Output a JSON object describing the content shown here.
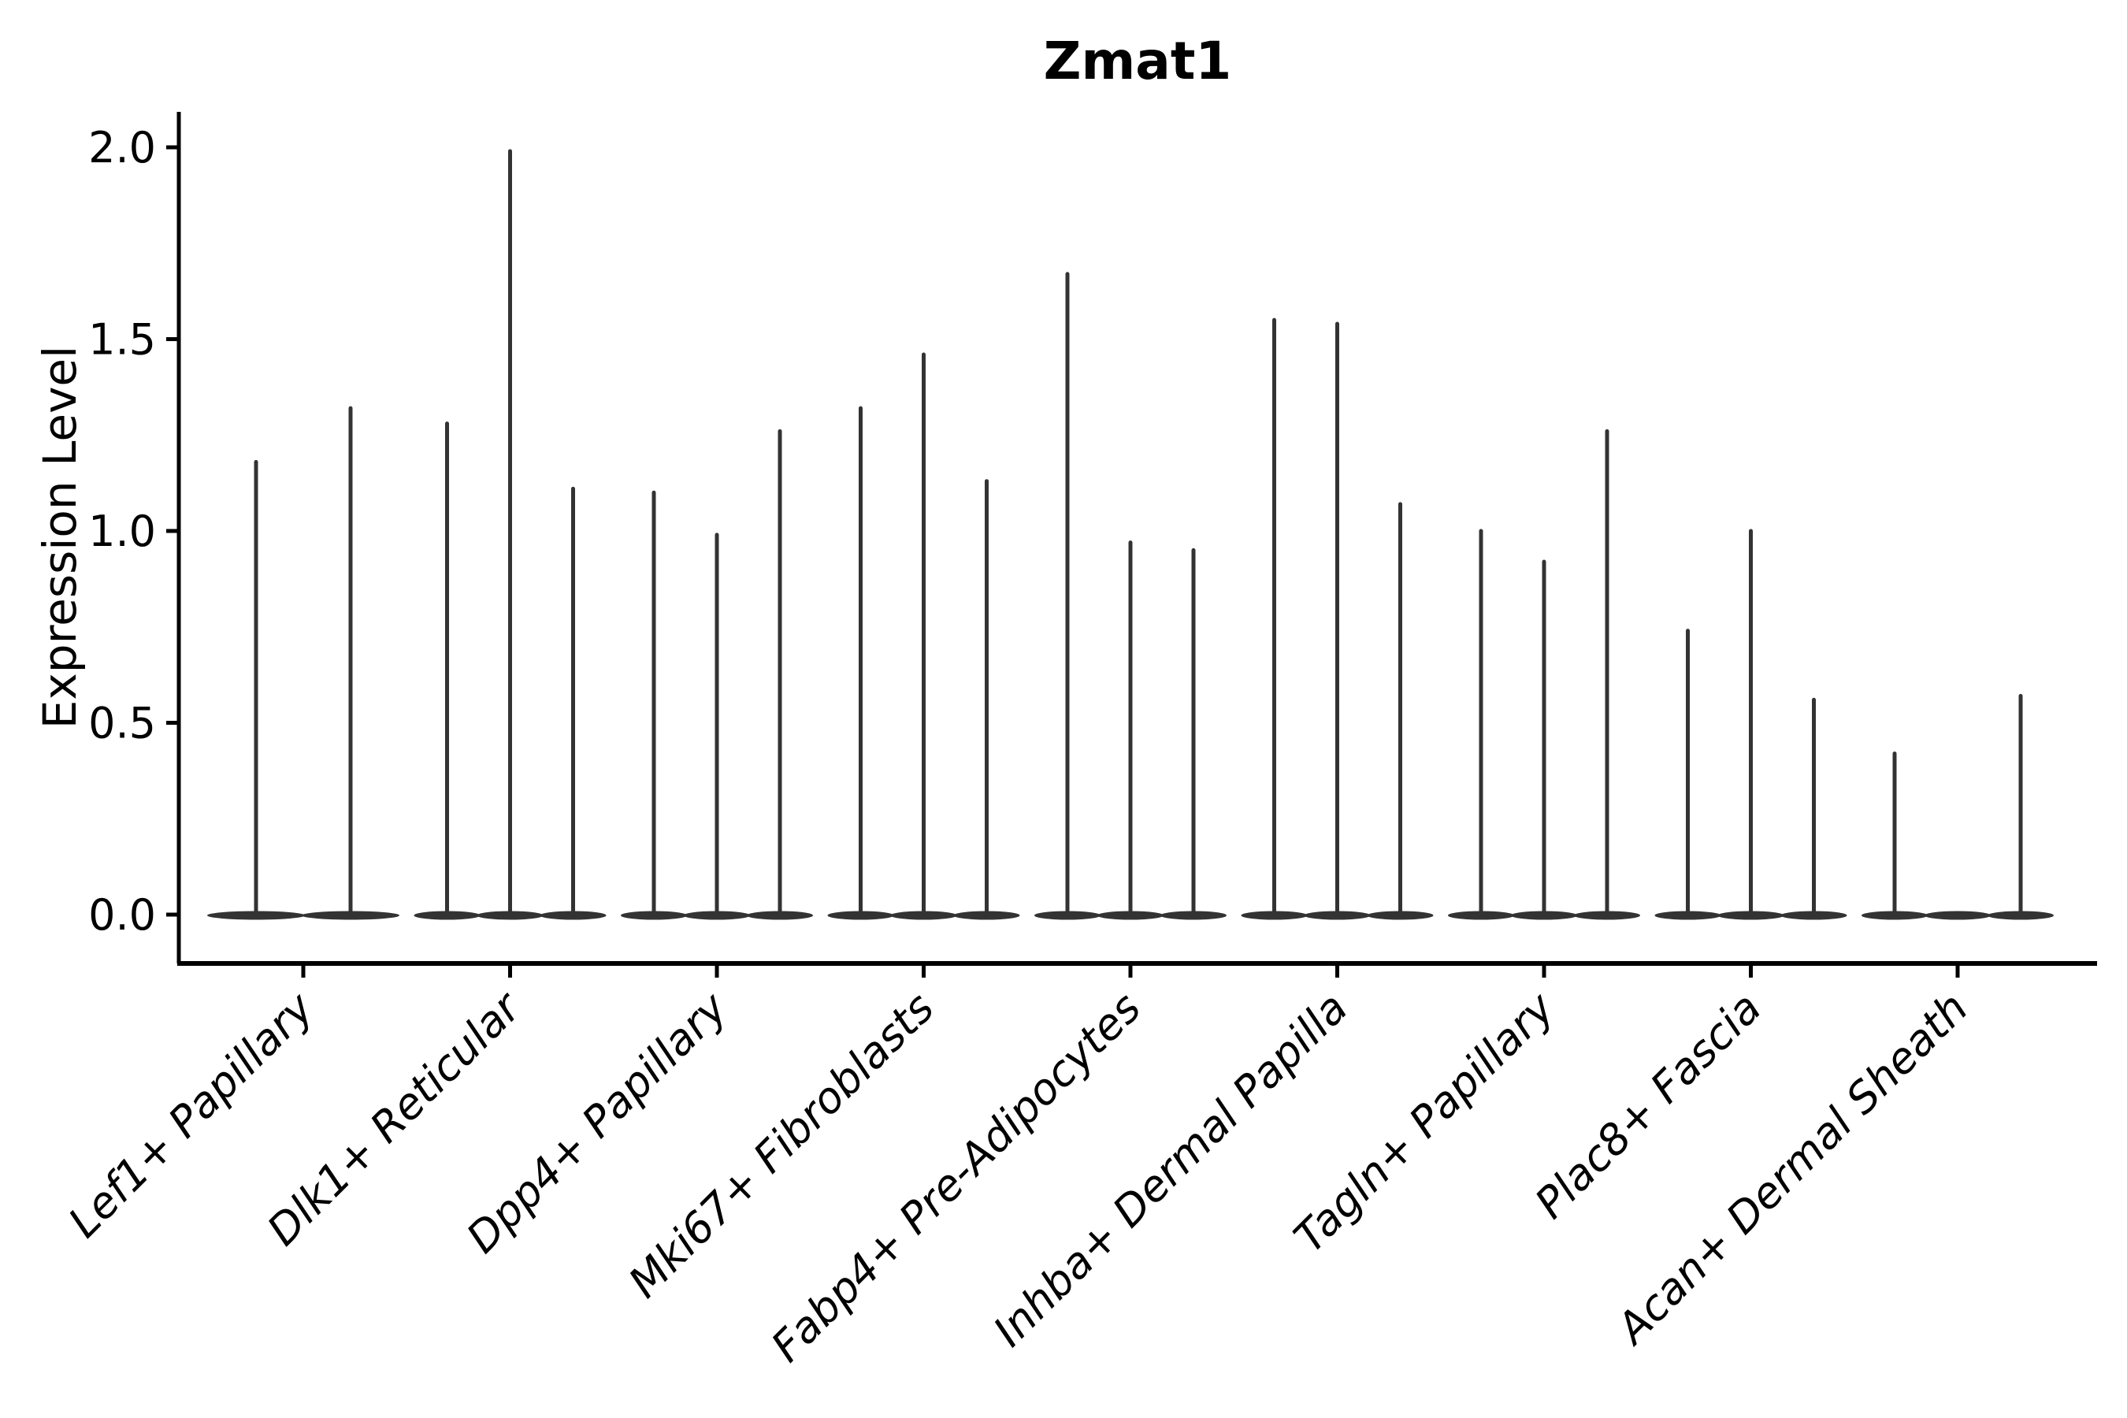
{
  "figure": {
    "background": "#ffffff",
    "violin_color": "#333333",
    "axis_color": "#000000"
  },
  "chart_data": {
    "type": "violin",
    "title": "Zmat1",
    "ylabel": "Expression Level",
    "xlabel": "",
    "grid": false,
    "legend": null,
    "ylim": [
      -0.13,
      2.09
    ],
    "y_ticks": [
      {
        "value": 0.0,
        "label": "0.0"
      },
      {
        "value": 0.5,
        "label": "0.5"
      },
      {
        "value": 1.0,
        "label": "1.0"
      },
      {
        "value": 1.5,
        "label": "1.5"
      },
      {
        "value": 2.0,
        "label": "2.0"
      }
    ],
    "violin_shape_note": "Each violin is bottom-heavy: a wide flat body at expression 0 with a thin spike rising to its maximum value.",
    "groups": [
      {
        "label": "Lef1+ Papillary",
        "violin_max": [
          1.18,
          1.32
        ]
      },
      {
        "label": "Dlk1+ Reticular",
        "violin_max": [
          1.28,
          1.99,
          1.11
        ]
      },
      {
        "label": "Dpp4+ Papillary",
        "violin_max": [
          1.1,
          0.99,
          1.26
        ]
      },
      {
        "label": "Mki67+ Fibroblasts",
        "violin_max": [
          1.32,
          1.46,
          1.13
        ]
      },
      {
        "label": "Fabp4+ Pre-Adipocytes",
        "violin_max": [
          1.67,
          0.97,
          0.95
        ]
      },
      {
        "label": "Inhba+ Dermal Papilla",
        "violin_max": [
          1.55,
          1.54,
          1.07
        ]
      },
      {
        "label": "Tagln+ Papillary",
        "violin_max": [
          1.0,
          0.92,
          1.26
        ]
      },
      {
        "label": "Plac8+ Fascia",
        "violin_max": [
          0.74,
          1.0,
          0.56
        ]
      },
      {
        "label": "Acan+ Dermal Sheath",
        "violin_max": [
          0.42,
          0.0,
          0.57
        ]
      }
    ]
  }
}
